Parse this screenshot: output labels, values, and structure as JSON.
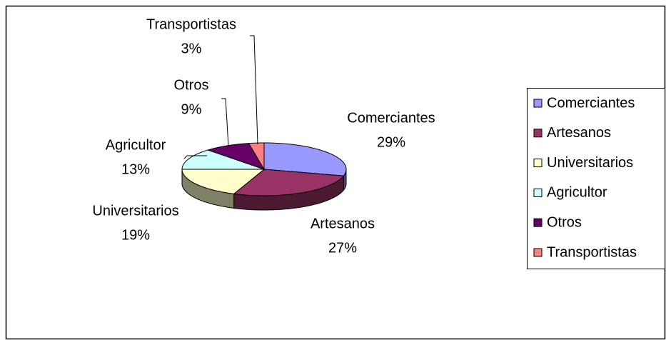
{
  "chart_data": {
    "type": "pie3d",
    "categories": [
      "Comerciantes",
      "Artesanos",
      "Universitarios",
      "Agricultor",
      "Otros",
      "Transportistas"
    ],
    "values": [
      29,
      27,
      19,
      13,
      9,
      3
    ],
    "value_labels": [
      "29%",
      "27%",
      "19%",
      "13%",
      "9%",
      "3%"
    ],
    "colors": [
      "#9999ff",
      "#993366",
      "#ffffcc",
      "#ccffff",
      "#660066",
      "#ff8080"
    ],
    "legend": "right"
  }
}
